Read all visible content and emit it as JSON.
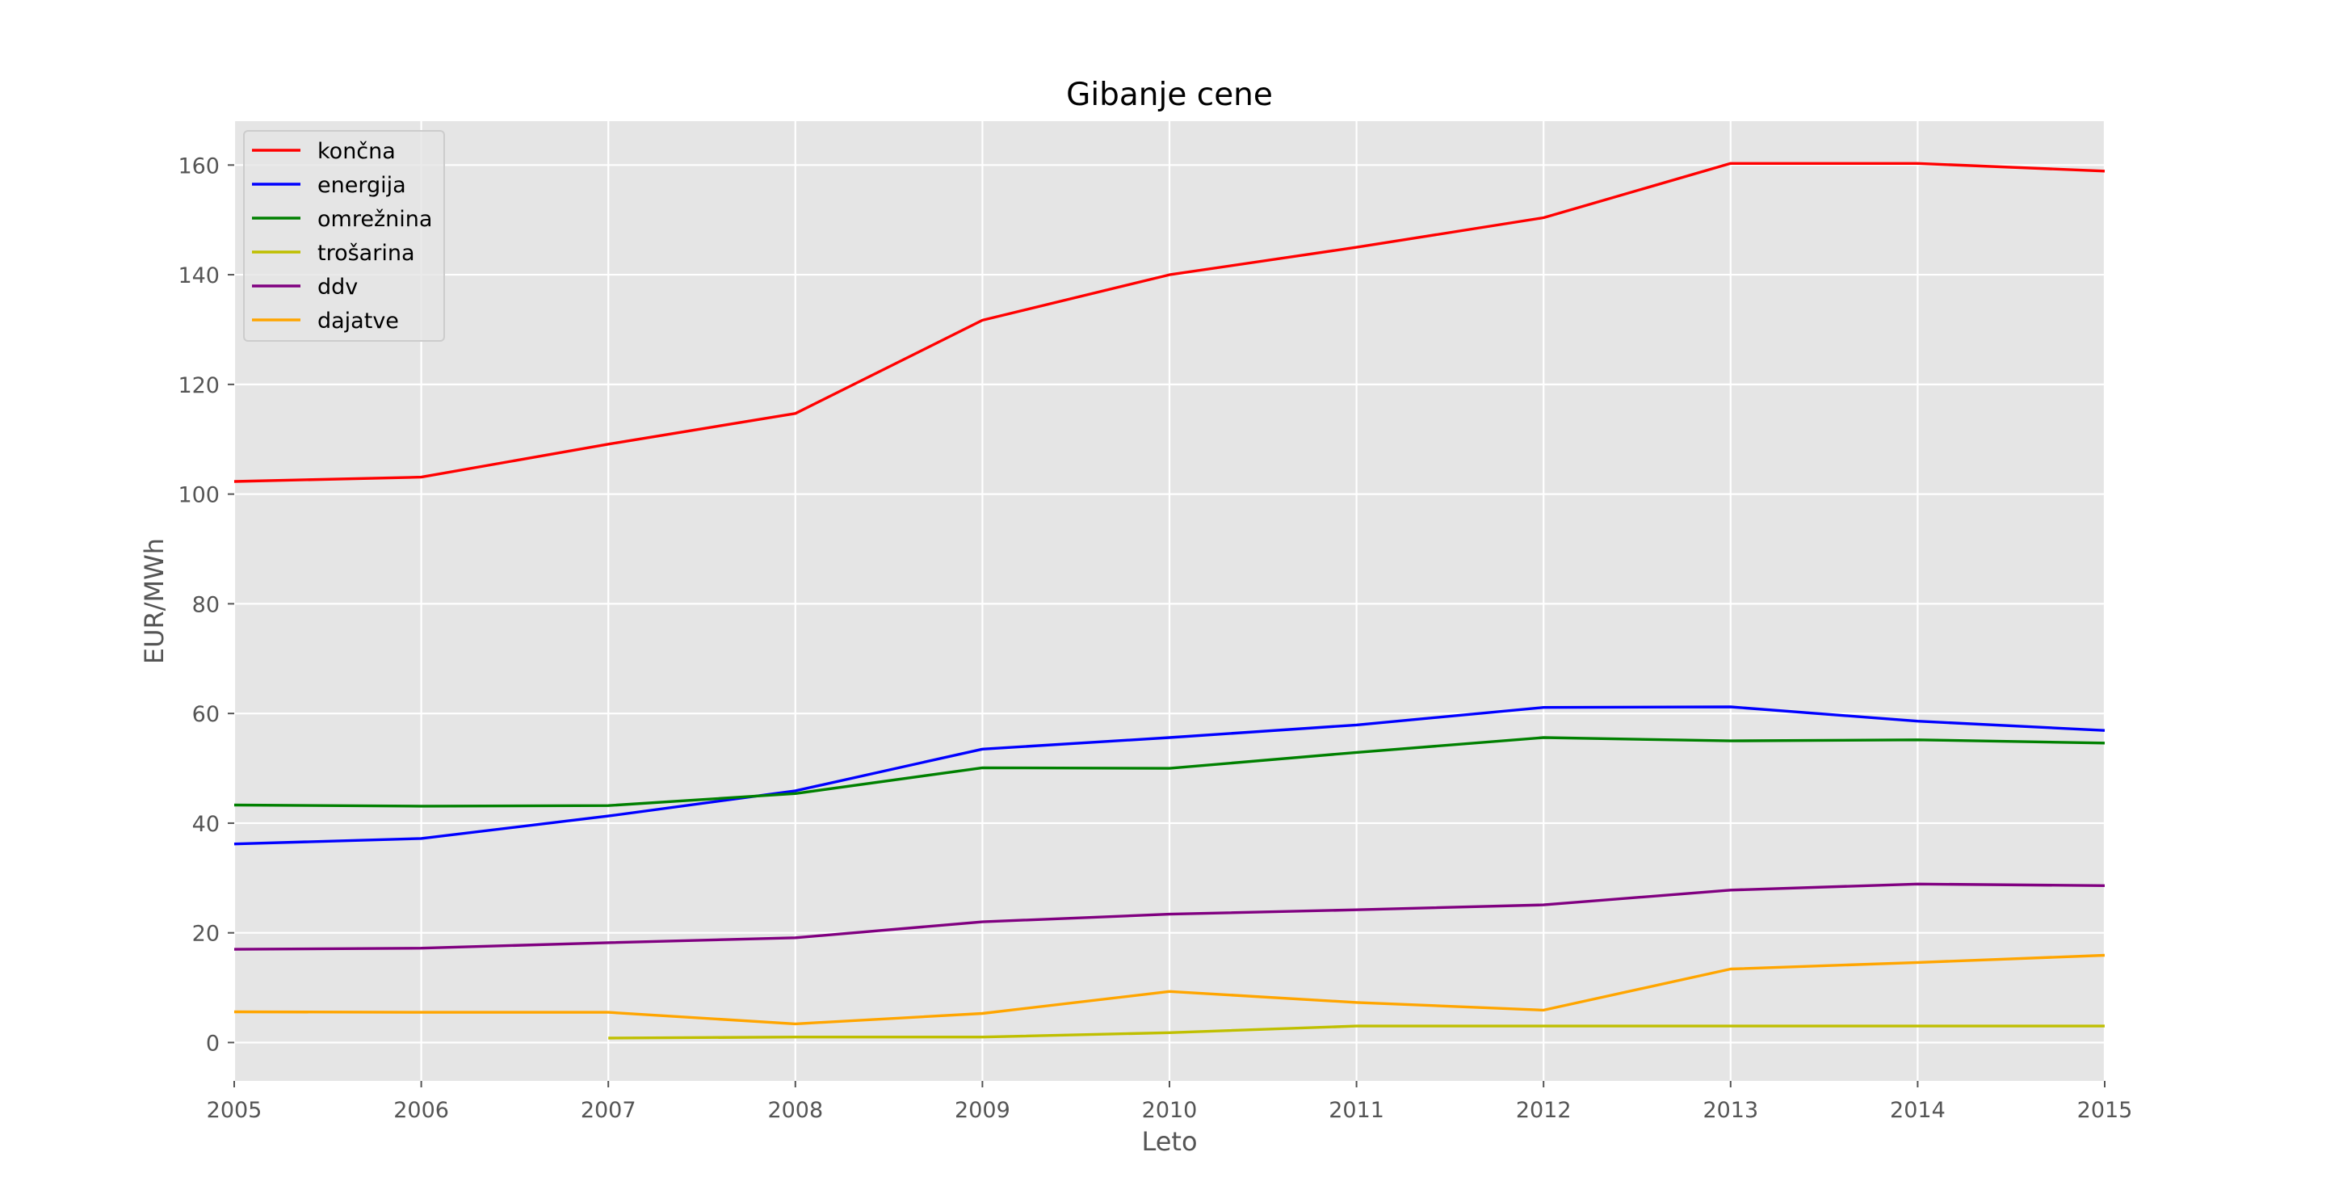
{
  "chart_data": {
    "type": "line",
    "title": "Gibanje cene",
    "xlabel": "Leto",
    "ylabel": "EUR/MWh",
    "xlim": [
      2005,
      2015
    ],
    "ylim": [
      -7,
      168
    ],
    "x_ticks": [
      "2005",
      "2006",
      "2007",
      "2008",
      "2009",
      "2010",
      "2011",
      "2012",
      "2013",
      "2014",
      "2015"
    ],
    "y_ticks": [
      "0",
      "20",
      "40",
      "60",
      "80",
      "100",
      "120",
      "140",
      "160"
    ],
    "grid": true,
    "legend_position": "top-left",
    "background": "#e5e5e5",
    "series": [
      {
        "name": "končna",
        "color": "#ff0000",
        "x": [
          2005,
          2006,
          2007,
          2008,
          2009,
          2010,
          2011,
          2012,
          2013,
          2014,
          2015
        ],
        "values": [
          102.3,
          103.1,
          109.1,
          114.7,
          131.7,
          140.0,
          145.0,
          150.4,
          160.3,
          160.3,
          158.9
        ]
      },
      {
        "name": "energija",
        "color": "#0000ff",
        "x": [
          2005,
          2006,
          2007,
          2008,
          2009,
          2010,
          2011,
          2012,
          2013,
          2014,
          2015
        ],
        "values": [
          36.2,
          37.2,
          41.3,
          45.9,
          53.5,
          55.6,
          57.9,
          61.1,
          61.2,
          58.6,
          56.9
        ]
      },
      {
        "name": "omrežnina",
        "color": "#008000",
        "x": [
          2005,
          2006,
          2007,
          2008,
          2009,
          2010,
          2011,
          2012,
          2013,
          2014,
          2015
        ],
        "values": [
          43.3,
          43.1,
          43.2,
          45.4,
          50.1,
          50.0,
          52.9,
          55.6,
          55.0,
          55.2,
          54.6
        ]
      },
      {
        "name": "trošarina",
        "color": "#bfbf00",
        "x": [
          2007,
          2008,
          2009,
          2010,
          2011,
          2012,
          2013,
          2014,
          2015
        ],
        "values": [
          0.8,
          1.0,
          1.0,
          1.8,
          3.0,
          3.0,
          3.0,
          3.0,
          3.0
        ]
      },
      {
        "name": "ddv",
        "color": "#800080",
        "x": [
          2005,
          2006,
          2007,
          2008,
          2009,
          2010,
          2011,
          2012,
          2013,
          2014,
          2015
        ],
        "values": [
          17.0,
          17.2,
          18.2,
          19.1,
          22.0,
          23.4,
          24.2,
          25.1,
          27.8,
          28.9,
          28.6
        ]
      },
      {
        "name": "dajatve",
        "color": "#ffa500",
        "x": [
          2005,
          2006,
          2007,
          2008,
          2009,
          2010,
          2011,
          2012,
          2013,
          2014,
          2015
        ],
        "values": [
          5.6,
          5.5,
          5.5,
          3.4,
          5.3,
          9.3,
          7.3,
          5.9,
          13.4,
          14.6,
          15.9
        ]
      }
    ]
  }
}
